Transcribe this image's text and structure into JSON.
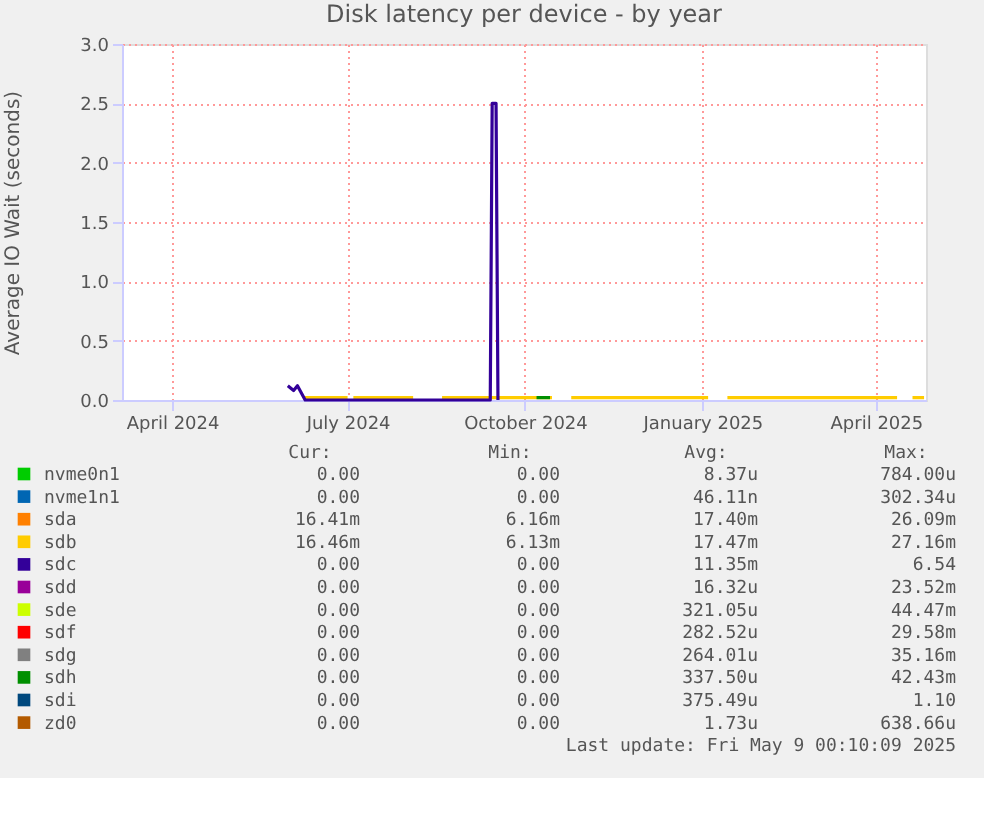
{
  "chart_data": {
    "type": "line",
    "title": "Disk latency per device - by year",
    "ylabel": "Average IO Wait (seconds)",
    "xlim": [
      "2024-03-06",
      "2025-04-27"
    ],
    "xticks": [
      {
        "value": "2024-04-01",
        "label": "April 2024"
      },
      {
        "value": "2024-07-01",
        "label": "July 2024"
      },
      {
        "value": "2024-10-01",
        "label": "October 2024"
      },
      {
        "value": "2025-01-01",
        "label": "January 2025"
      },
      {
        "value": "2025-04-01",
        "label": "April 2025"
      }
    ],
    "ylim": [
      0,
      3
    ],
    "yticks": [
      {
        "value": 0,
        "label": "0.0"
      },
      {
        "value": 0.5,
        "label": "0.5"
      },
      {
        "value": 1,
        "label": "1.0"
      },
      {
        "value": 1.5,
        "label": "1.5"
      },
      {
        "value": 2,
        "label": "2.0"
      },
      {
        "value": 2.5,
        "label": "2.5"
      },
      {
        "value": 3,
        "label": "3.0"
      }
    ],
    "grid": true,
    "legend": "bottom",
    "line_style": "solid",
    "marker": "none",
    "series": [
      {
        "name": "nvme0n1",
        "color": "#00cc00"
      },
      {
        "name": "nvme1n1",
        "color": "#0066b3"
      },
      {
        "name": "sda",
        "color": "#ff8000"
      },
      {
        "name": "sdb",
        "color": "#ffcc00",
        "x": [
          "2024-06-08",
          "2024-07-01",
          "2024-07-02",
          "2024-07-04",
          "2024-08-04",
          "2024-08-10",
          "2024-08-19",
          "2024-10-15",
          "2024-10-20",
          "2024-10-25",
          "2025-01-04",
          "2025-01-09",
          "2025-01-14",
          "2025-04-12",
          "2025-04-16",
          "2025-04-20",
          "2025-04-26"
        ],
        "values": [
          0.02,
          0.02,
          null,
          0.02,
          0.02,
          null,
          0.02,
          0.02,
          null,
          0.02,
          0.02,
          null,
          0.02,
          0.02,
          null,
          0.02,
          0.02
        ]
      },
      {
        "name": "sdc",
        "color": "#330099",
        "x": [
          "2024-05-31",
          "2024-06-03",
          "2024-06-05",
          "2024-06-09",
          "2024-09-13",
          "2024-09-14",
          "2024-09-16",
          "2024-09-17"
        ],
        "values": [
          0.12,
          0.08,
          0.12,
          0,
          0,
          2.5,
          2.5,
          0
        ]
      },
      {
        "name": "sdd",
        "color": "#990099"
      },
      {
        "name": "sde",
        "color": "#ccff00"
      },
      {
        "name": "sdf",
        "color": "#ff0000"
      },
      {
        "name": "sdg",
        "color": "#808080"
      },
      {
        "name": "sdh",
        "color": "#008f00",
        "x": [
          "2024-10-07",
          "2024-10-14"
        ],
        "values": [
          0.02,
          0.02
        ]
      },
      {
        "name": "sdi",
        "color": "#00487d"
      },
      {
        "name": "zd0",
        "color": "#b35a00"
      }
    ],
    "annotations": [
      "Cur:",
      "Min:",
      "Avg:",
      "Max:",
      "0.00",
      "0.00",
      "8.37u",
      "784.00u",
      "0.00",
      "0.00",
      "46.11n",
      "302.34u",
      "16.41m",
      "6.16m",
      "17.40m",
      "26.09m",
      "16.46m",
      "6.13m",
      "17.47m",
      "27.16m",
      "0.00",
      "0.00",
      "11.35m",
      "6.54",
      "0.00",
      "0.00",
      "16.32u",
      "23.52m",
      "0.00",
      "0.00",
      "321.05u",
      "44.47m",
      "0.00",
      "0.00",
      "282.52u",
      "29.58m",
      "0.00",
      "0.00",
      "264.01u",
      "35.16m",
      "0.00",
      "0.00",
      "337.50u",
      "42.43m",
      "0.00",
      "0.00",
      "375.49u",
      "1.10",
      "0.00",
      "0.00",
      "1.73u",
      "638.66u",
      "Last update: Fri May  9 00:10:09 2025"
    ]
  }
}
